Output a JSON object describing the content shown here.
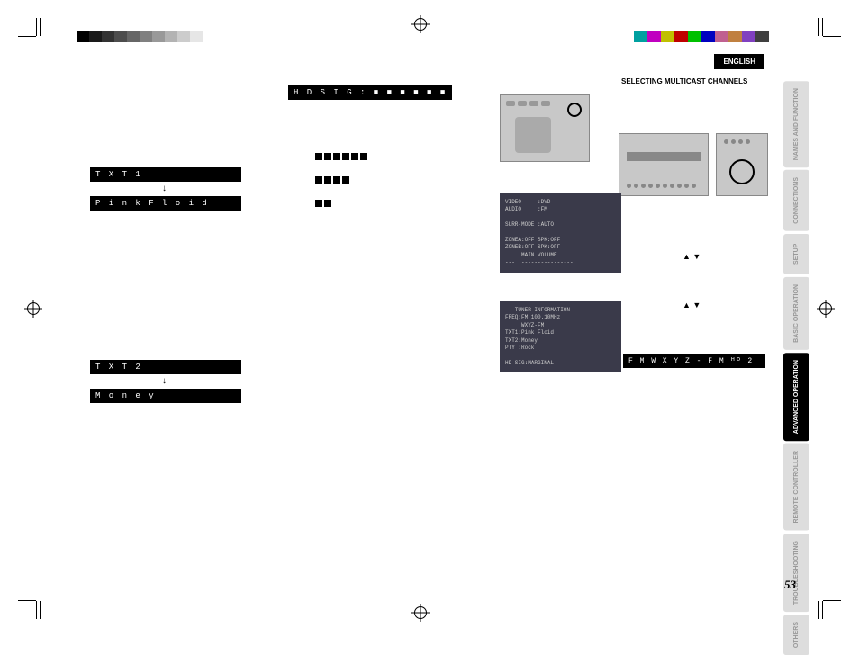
{
  "language_tab": "ENGLISH",
  "section_heading": "SELECTING MULTICAST CHANNELS",
  "page_number": "53",
  "hd_sig": {
    "label": "H D   S I G : ■ ■ ■ ■ ■ ■"
  },
  "txt1": {
    "label": "T X T 1",
    "value": "P i n k   F l o i d"
  },
  "txt2": {
    "label": "T X T 2",
    "value": "M o n e y"
  },
  "arrow": "↓",
  "nav_glyphs": "▲   ▼",
  "fm_display": "F M   W X Y Z - F M   ᴴᴰ 2",
  "osd1_text": "VIDEO     :DVD\nAUDIO     :FM\n\nSURR-MODE :AUTO\n\nZONEA:OFF SPK:OFF\nZONEB:OFF SPK:OFF\n     MAIN VOLUME\n---  ----------------",
  "osd2_text": "   TUNER INFORMATION\nFREQ:FM 100.10MHz\n     WXYZ-FM\nTXT1:Pink Floid\nTXT2:Money\nPTY :Rock\n\nHD-SIG:MARGINAL",
  "side_tabs": [
    {
      "label": "NAMES AND\nFUNCTION",
      "active": false
    },
    {
      "label": "CONNECTIONS",
      "active": false
    },
    {
      "label": "SETUP",
      "active": false
    },
    {
      "label": "BASIC\nOPERATION",
      "active": false
    },
    {
      "label": "ADVANCED\nOPERATION",
      "active": true
    },
    {
      "label": "REMOTE\nCONTROLLER",
      "active": false
    },
    {
      "label": "TROUBLESHOOTING",
      "active": false
    },
    {
      "label": "OTHERS",
      "active": false
    }
  ],
  "colorbar_left": [
    "#000",
    "#1a1a1a",
    "#333",
    "#4d4d4d",
    "#666",
    "#808080",
    "#999",
    "#b3b3b3",
    "#ccc",
    "#e6e6e6"
  ],
  "colorbar_right": [
    "#00a0a0",
    "#c000c0",
    "#c0c000",
    "#c00000",
    "#00c000",
    "#0000c0",
    "#c06090",
    "#c08040",
    "#8040c0",
    "#404040"
  ],
  "colors": {
    "black": "#000000",
    "osd_bg": "#3a3a4a",
    "tab_inactive_bg": "#dddddd",
    "tab_inactive_fg": "#999999",
    "device_bg": "#c8c8c8"
  },
  "signal_rows": [
    6,
    4,
    2
  ]
}
